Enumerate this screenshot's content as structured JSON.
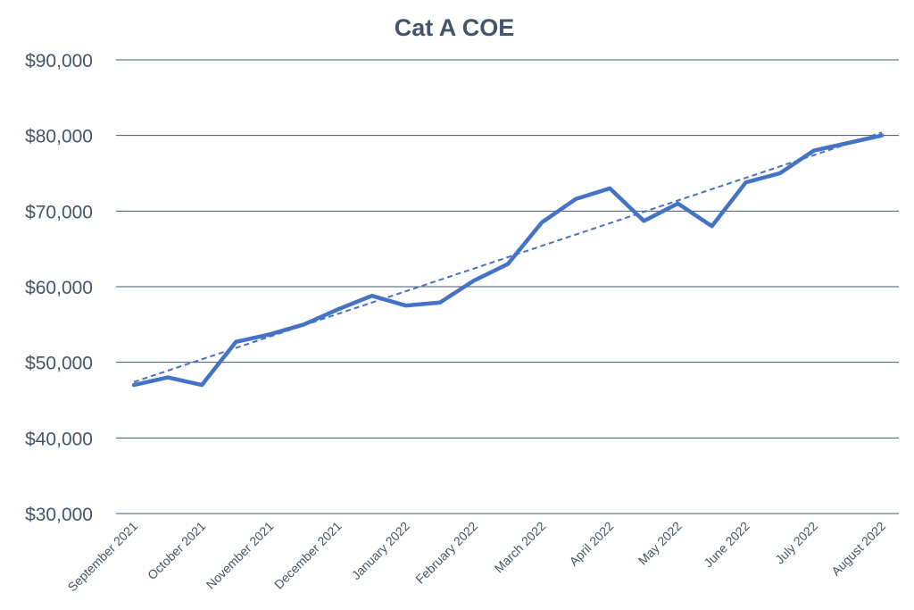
{
  "chart_data": {
    "type": "line",
    "title": "Cat A COE",
    "xlabel": "",
    "ylabel": "",
    "ylim": [
      30000,
      90000
    ],
    "yticks": [
      30000,
      40000,
      50000,
      60000,
      70000,
      80000,
      90000
    ],
    "ytick_labels": [
      "$30,000",
      "$40,000",
      "$50,000",
      "$60,000",
      "$70,000",
      "$80,000",
      "$90,000"
    ],
    "grid": true,
    "legend": "none",
    "xtick_labels": [
      "September 2021",
      "October 2021",
      "November 2021",
      "December 2021",
      "January 2022",
      "February 2022",
      "March 2022",
      "April 2022",
      "May 2022",
      "June 2022",
      "July 2022",
      "August 2022"
    ],
    "series": [
      {
        "name": "Cat A COE",
        "color": "#4472c4",
        "values": [
          47000,
          48000,
          47000,
          52700,
          53700,
          55000,
          57000,
          58800,
          57500,
          57900,
          60800,
          63000,
          68500,
          71600,
          73000,
          68700,
          71000,
          68000,
          73800,
          75000,
          78000,
          79000,
          80000
        ]
      }
    ],
    "trendline": {
      "type": "linear",
      "style": "dashed",
      "color": "#4472c4",
      "start": 47400,
      "end": 80400
    }
  }
}
